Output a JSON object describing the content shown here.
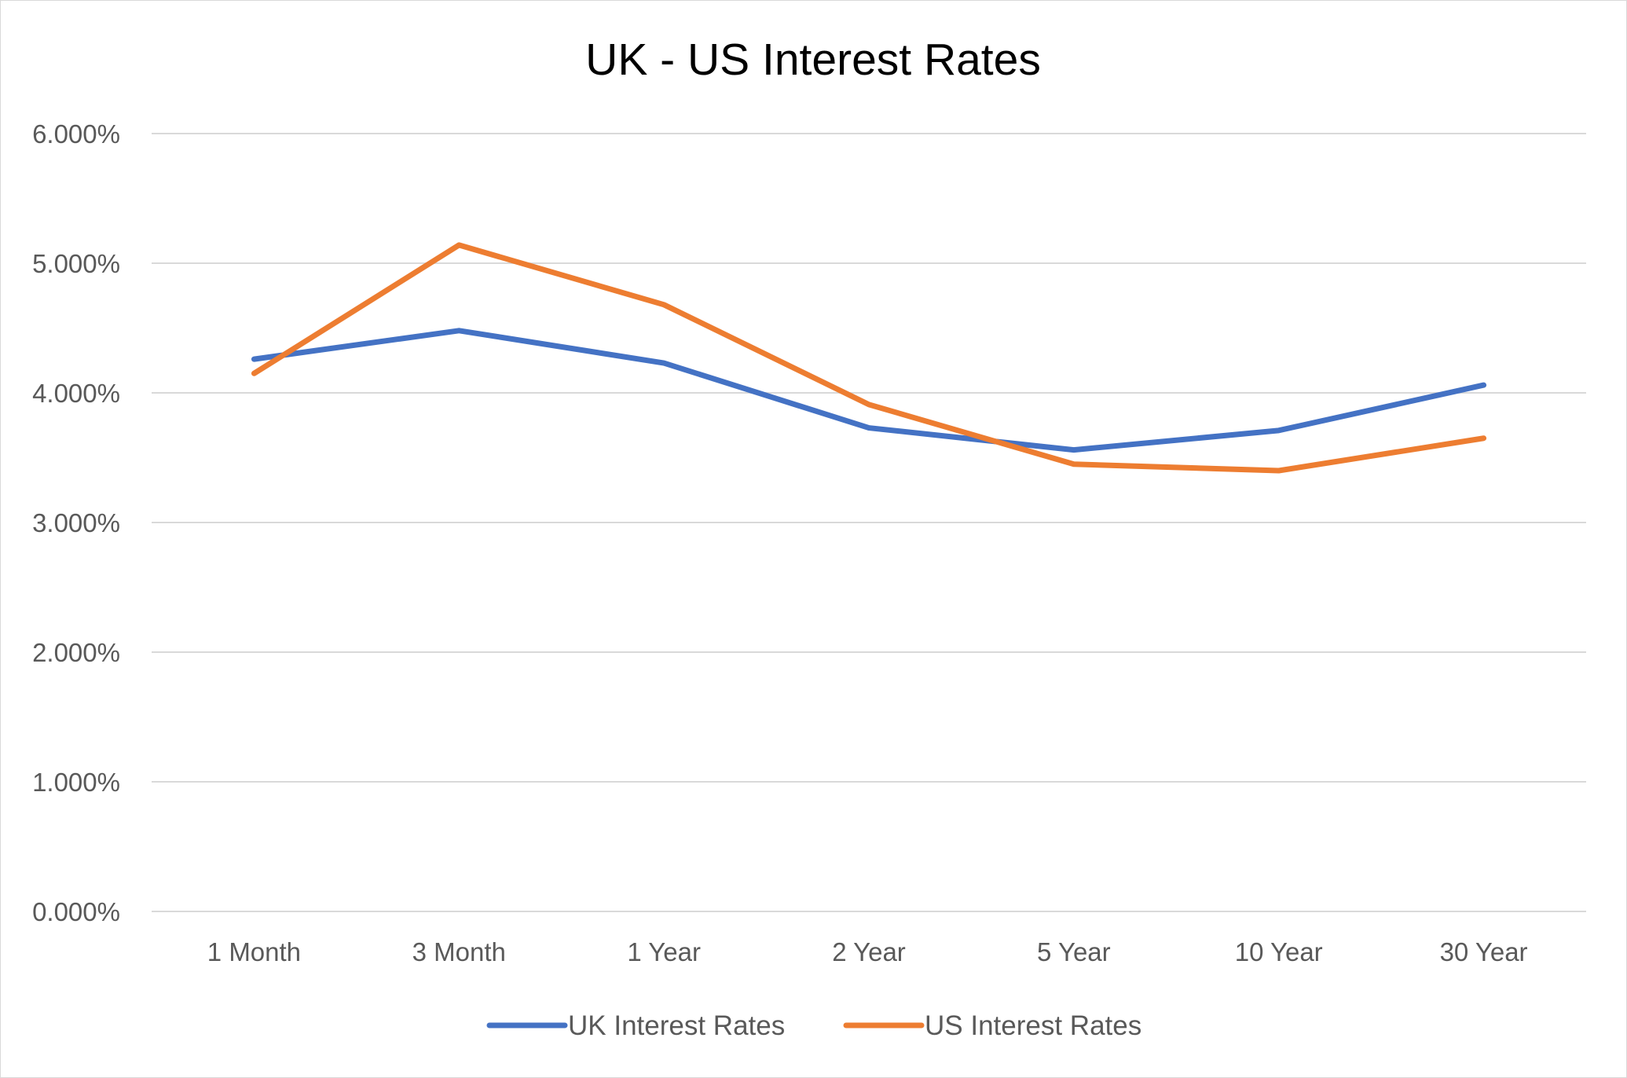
{
  "chart_data": {
    "type": "line",
    "title": "UK - US Interest Rates",
    "xlabel": "",
    "ylabel": "",
    "categories": [
      "1 Month",
      "3 Month",
      "1 Year",
      "2 Year",
      "5 Year",
      "10 Year",
      "30 Year"
    ],
    "series": [
      {
        "name": "UK Interest Rates",
        "color": "#4472c4",
        "values": [
          4.26,
          4.48,
          4.23,
          3.73,
          3.56,
          3.71,
          4.06
        ]
      },
      {
        "name": "US Interest Rates",
        "color": "#ed7d31",
        "values": [
          4.15,
          5.14,
          4.68,
          3.91,
          3.45,
          3.4,
          3.65
        ]
      }
    ],
    "ylim": [
      0,
      6
    ],
    "yticks": [
      "0.000%",
      "1.000%",
      "2.000%",
      "3.000%",
      "4.000%",
      "5.000%",
      "6.000%"
    ],
    "grid": true,
    "gridline_color": "#d9d9d9",
    "legend_position": "bottom"
  }
}
